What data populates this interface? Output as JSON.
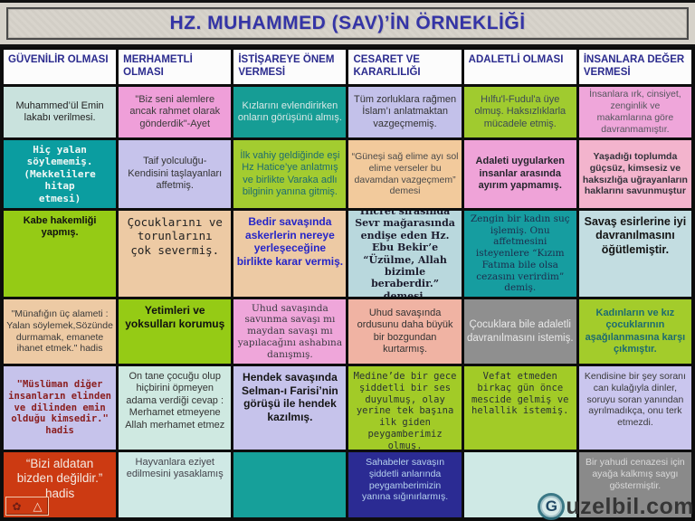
{
  "title": "HZ. MUHAMMED (SAV)’İN ÖRNEKLİĞİ",
  "watermark": {
    "logo_letter": "G",
    "text": "uzelbil.com"
  },
  "nav": {
    "rose_icon": "✿",
    "triangle_icon": "△"
  },
  "table": {
    "headers": [
      "GÜVENİLİR OLMASI",
      "MERHAMETLİ OLMASI",
      "İSTİŞAREYE ÖNEM VERMESİ",
      "CESARET VE KARARLILIĞI",
      "ADALETLİ OLMASI",
      "İNSANLARA DEĞER VERMESİ"
    ],
    "rows": [
      {
        "cells": [
          {
            "text": "Muhammed’ül Emin lakabı verilmesi.",
            "bg": "#c9e2dd",
            "fg": "#222222",
            "font": "sans",
            "bold": false,
            "size": 11
          },
          {
            "text": "\"Biz seni alemlere ancak rahmet olarak gönderdik\"-Ayet",
            "bg": "#ef9fd9",
            "fg": "#3a3a3a",
            "font": "sans",
            "bold": false,
            "size": 11
          },
          {
            "text": "Kızlarını evlendirirken onların görüşünü almış.",
            "bg": "#169d95",
            "fg": "#d9e9e7",
            "font": "sans",
            "bold": false,
            "size": 11
          },
          {
            "text": "Tüm zorluklara rağmen İslam’ı anlatmaktan vazgeçmemiş.",
            "bg": "#c3c1ea",
            "fg": "#333333",
            "font": "sans",
            "bold": false,
            "size": 11
          },
          {
            "text": "Hılfu'l-Fudul'a üye olmuş. Haksızlıklarla mücadele etmiş.",
            "bg": "#a0cb2f",
            "fg": "#3d4a55",
            "font": "sans",
            "bold": false,
            "size": 11
          },
          {
            "text": "İnsanlara ırk, cinsiyet, zenginlik ve makamlarına göre davranmamıştır.",
            "bg": "#efa6da",
            "fg": "#56565e",
            "font": "sans",
            "bold": false,
            "size": 10.5
          }
        ]
      },
      {
        "cells": [
          {
            "text": "Hiç yalan\nsöylememiş.\n(Mekkelilere hitap\netmesi)",
            "bg": "#0b9da0",
            "fg": "#f2f8f6",
            "font": "mono",
            "bold": true,
            "size": 11
          },
          {
            "text": "Taif yolculuğu-\nKendisini taşlayanları affetmiş.",
            "bg": "#c6c3eb",
            "fg": "#333333",
            "font": "sans",
            "bold": false,
            "size": 11
          },
          {
            "text": "İlk vahiy geldiğinde eşi Hz Hatice’ye anlatmış ve birlikte Varaka adlı bilginin yanına gitmiş.",
            "bg": "#a3cc30",
            "fg": "#1d6b70",
            "font": "sans",
            "bold": false,
            "size": 11
          },
          {
            "text": "“Güneşi sağ elime ayı sol elime verseler bu davamdan vazgeçmem” demesi",
            "bg": "#f2ca9c",
            "fg": "#4a4a4a",
            "font": "sans",
            "bold": false,
            "size": 10.5
          },
          {
            "text": "Adaleti uygularken insanlar arasında ayırım yapmamış.",
            "bg": "#efa3d8",
            "fg": "#26262e",
            "font": "sans",
            "bold": true,
            "size": 11
          },
          {
            "text": "Yaşadığı toplumda güçsüz, kimsesiz ve haksızlığa uğrayanların haklarını savunmuştur",
            "bg": "#f3b4cd",
            "fg": "#33333b",
            "font": "sans",
            "bold": true,
            "size": 10.5
          }
        ]
      },
      {
        "cells": [
          {
            "text": "Kabe hakemliği\nyapmış.",
            "bg": "#95cb15",
            "fg": "#101010",
            "font": "sans",
            "bold": true,
            "size": 11,
            "valign": "top"
          },
          {
            "text": "Çocuklarını ve\ntorunlarını\nçok severmiş.",
            "bg": "#edcaa4",
            "fg": "#222222",
            "font": "mono",
            "bold": false,
            "size": 12.5,
            "valign": "top"
          },
          {
            "text": "Bedir savaşında askerlerin nereye yerleşeceğine birlikte karar vermiş.",
            "bg": "#edcaa4",
            "fg": "#2525c8",
            "font": "sans",
            "bold": true,
            "size": 12,
            "valign": "top"
          },
          {
            "text": "Hicret sırasında Sevr mağarasında endişe eden Hz. Ebu Bekir’e “Üzülme, Allah bizimle beraberdir.” demesi.",
            "bg": "#b9d8dd",
            "fg": "#1c1c2e",
            "font": "serif",
            "bold": true,
            "size": 11
          },
          {
            "text": "Zengin bir kadın suç işlemiş. Onu affetmesini isteyenlere “Kızım Fatıma bile olsa cezasını verirdim” demiş.",
            "bg": "#169da0",
            "fg": "#1d2d4d",
            "font": "serif",
            "bold": false,
            "size": 10.5
          },
          {
            "text": "Savaş esirlerine iyi davranılmasını öğütlemiştir.",
            "bg": "#c3dde1",
            "fg": "#141414",
            "font": "sans",
            "bold": true,
            "size": 12.5,
            "valign": "top"
          }
        ]
      },
      {
        "cells": [
          {
            "text": "\"Münafığın üç alameti :\nYalan söylemek,Sözünde durmamak, emanete ihanet etmek.\" hadis",
            "bg": "#edcaa4",
            "fg": "#3a3a3a",
            "font": "sans",
            "bold": false,
            "size": 10.5
          },
          {
            "text": "Yetimleri ve\nyoksulları korumuş",
            "bg": "#95cb15",
            "fg": "#101010",
            "font": "sans",
            "bold": true,
            "size": 12,
            "valign": "top"
          },
          {
            "text": "Uhud savaşında savunma savaşı mı maydan savaşı mı yapılacağını ashabına danışmış.",
            "bg": "#efa6da",
            "fg": "#3a3a42",
            "font": "serif",
            "bold": false,
            "size": 10.5
          },
          {
            "text": "Uhud savaşında ordusunu daha büyük bir bozgundan kurtarmış.",
            "bg": "#f0b3a3",
            "fg": "#333333",
            "font": "sans",
            "bold": false,
            "size": 11
          },
          {
            "text": "Çocuklara bile adaletli davranılmasını istemiş.",
            "bg": "#8f8f8f",
            "fg": "#e9e9e9",
            "font": "sans",
            "bold": false,
            "size": 11.5
          },
          {
            "text": "Kadınların ve kız çocuklarının aşağılanmasına karşı çıkmıştır.",
            "bg": "#a3cc2b",
            "fg": "#1d6b70",
            "font": "sans",
            "bold": true,
            "size": 11
          }
        ]
      },
      {
        "cells": [
          {
            "text": "\"Müslüman diğer insanların elinden ve dilinden emin olduğu kimsedir.\" hadis",
            "bg": "#c6c3eb",
            "fg": "#8a1d1d",
            "font": "mono",
            "bold": true,
            "size": 10.5
          },
          {
            "text": "On tane çocuğu olup hiçbirini öpmeyen adama verdiği cevap : Merhamet etmeyene Allah merhamet etmez",
            "bg": "#cfe9e1",
            "fg": "#333333",
            "font": "sans",
            "bold": false,
            "size": 11,
            "valign": "top"
          },
          {
            "text": "Hendek savaşında Selman-ı Farisi’nin görüşü ile hendek kazılmış.",
            "bg": "#c6c3eb",
            "fg": "#151515",
            "font": "sans",
            "bold": true,
            "size": 12,
            "valign": "top"
          },
          {
            "text": "Medine’de bir gece şiddetli bir ses duyulmuş, olay yerine tek başına ilk giden peygamberimiz olmuş.",
            "bg": "#a2cb27",
            "fg": "#2a3333",
            "font": "mono",
            "bold": false,
            "size": 10.5,
            "valign": "top"
          },
          {
            "text": "Vefat etmeden birkaç gün önce mescide gelmiş ve helallik istemiş.",
            "bg": "#a2cb27",
            "fg": "#2a3333",
            "font": "mono",
            "bold": false,
            "size": 10.5,
            "valign": "top"
          },
          {
            "text": "Kendisine bir şey soranı can kulağıyla dinler, soruyu soran yanından ayrılmadıkça, onu terk etmezdi.",
            "bg": "#cac6ee",
            "fg": "#3a3a3a",
            "font": "sans",
            "bold": false,
            "size": 10.5,
            "valign": "top"
          }
        ]
      },
      {
        "cells": [
          {
            "text": "“Bizi aldatan\nbizden değildir.”\nhadis",
            "bg": "#cc3a12",
            "fg": "#f4e9e2",
            "font": "sans",
            "bold": false,
            "size": 13.5,
            "valign": "top"
          },
          {
            "text": "Hayvanlara eziyet\nedilmesini yasaklamış",
            "bg": "#cfe9e5",
            "fg": "#44444c",
            "font": "sans",
            "bold": false,
            "size": 11,
            "valign": "top"
          },
          {
            "text": "",
            "bg": "#16a09a",
            "fg": "#16a09a",
            "font": "sans",
            "bold": false,
            "size": 11
          },
          {
            "text": "Sahabeler savaşın\nşiddetli anlarında\npeygamberimizin\nyanına sığınırlarmış.",
            "bg": "#2b2b93",
            "fg": "#b6d2ee",
            "font": "sans",
            "bold": false,
            "size": 10.5,
            "valign": "top"
          },
          {
            "text": "",
            "bg": "#cfe9e5",
            "fg": "#cfe9e5",
            "font": "sans",
            "bold": false,
            "size": 11
          },
          {
            "text": "Bir yahudi cenazesi için\nayağa kalkmış saygı\ngöstermiştir.",
            "bg": "#8a8a8a",
            "fg": "#d9d9d9",
            "font": "sans",
            "bold": false,
            "size": 10.5,
            "valign": "top"
          }
        ]
      }
    ]
  }
}
